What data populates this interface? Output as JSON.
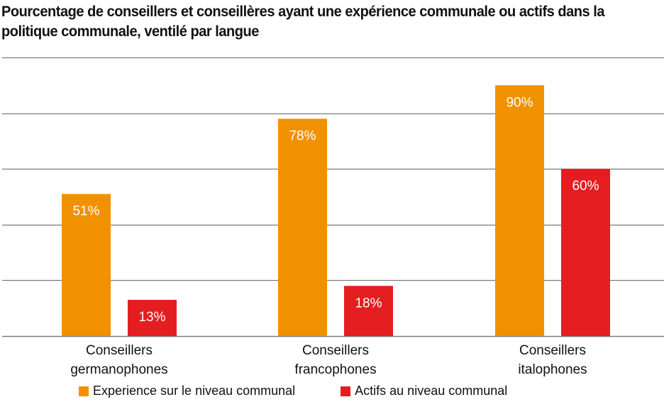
{
  "chart_data": {
    "type": "bar",
    "title": "Pourcentage de conseillers et conseillères ayant une expérience communale ou actifs dans la politique communale, ventilé par langue",
    "categories": [
      [
        "Conseillers",
        "germanophones"
      ],
      [
        "Conseillers",
        "francophones"
      ],
      [
        "Conseillers",
        "italophones"
      ]
    ],
    "series": [
      {
        "name": "Experience sur le niveau communal",
        "color": "#F29100",
        "values": [
          51,
          78,
          90
        ],
        "labels": [
          "51%",
          "78%",
          "90%"
        ]
      },
      {
        "name": "Actifs au niveau communal",
        "color": "#E41E20",
        "values": [
          13,
          18,
          60
        ],
        "labels": [
          "13%",
          "18%",
          "60%"
        ]
      }
    ],
    "xlabel": "",
    "ylabel": "",
    "ylim": [
      0,
      100
    ],
    "gridlines": [
      0,
      20,
      40,
      60,
      80,
      100
    ],
    "grid": true,
    "y_tick_labels_shown": false,
    "legend_position": "bottom"
  }
}
